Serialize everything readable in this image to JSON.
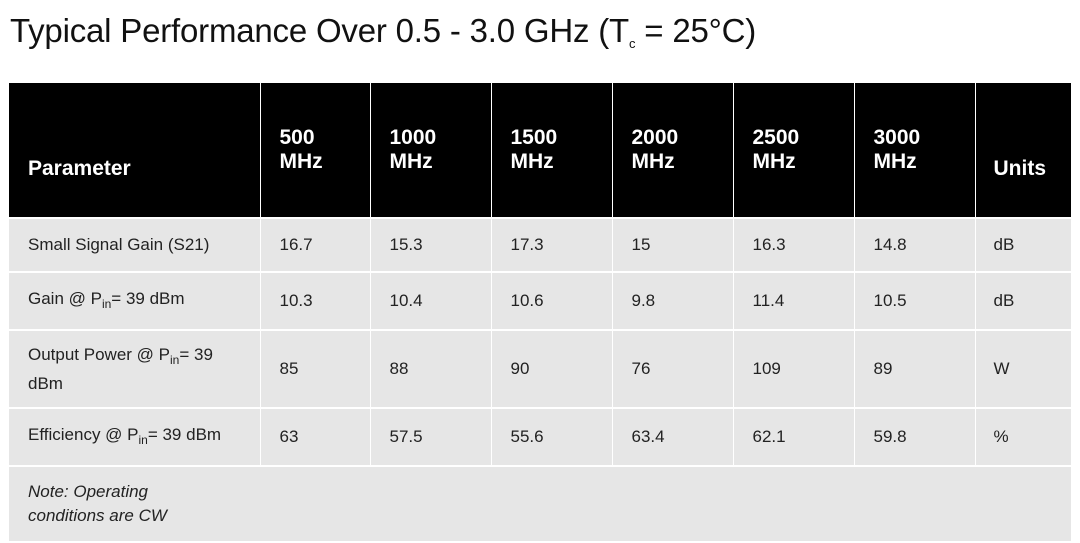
{
  "title": {
    "main": "Typical Performance Over 0.5 - 3.0 GHz (T",
    "sub": "c",
    "tail": " = 25°C)"
  },
  "table": {
    "headers": [
      "Parameter",
      "500 MHz",
      "1000 MHz",
      "1500 MHz",
      "2000 MHz",
      "2500 MHz",
      "3000 MHz",
      "Units"
    ],
    "header_lines": [
      [
        "Parameter"
      ],
      [
        "500",
        "MHz"
      ],
      [
        "1000",
        "MHz"
      ],
      [
        "1500",
        "MHz"
      ],
      [
        "2000",
        "MHz"
      ],
      [
        "2500",
        "MHz"
      ],
      [
        "3000",
        "MHz"
      ],
      [
        "Units"
      ]
    ],
    "rows": [
      {
        "param": "Small Signal Gain (S21)",
        "values": [
          "16.7",
          "15.3",
          "17.3",
          "15",
          "16.3",
          "14.8"
        ],
        "unit": "dB"
      },
      {
        "param_pre": "Gain @ P",
        "param_sub": "in",
        "param_post": "= 39 dBm",
        "values": [
          "10.3",
          "10.4",
          "10.6",
          "9.8",
          "11.4",
          "10.5"
        ],
        "unit": "dB"
      },
      {
        "param_pre": "Output Power @ P",
        "param_sub": "in",
        "param_post": "= 39",
        "param_line2": "dBm",
        "values": [
          "85",
          "88",
          "90",
          "76",
          "109",
          "89"
        ],
        "unit": "W"
      },
      {
        "param_pre": "Efficiency @ P",
        "param_sub": "in",
        "param_post": "= 39 dBm",
        "values": [
          "63",
          "57.5",
          "55.6",
          "63.4",
          "62.1",
          "59.8"
        ],
        "unit": "%"
      }
    ],
    "note_line1": "Note: Operating",
    "note_line2": "conditions are CW"
  }
}
